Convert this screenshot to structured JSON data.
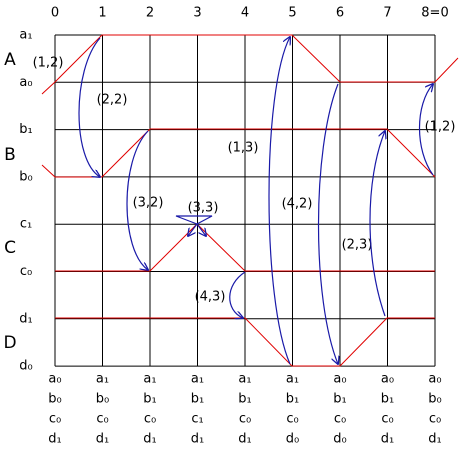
{
  "columns": [
    "0",
    "1",
    "2",
    "3",
    "4",
    "5",
    "6",
    "7",
    "8=0"
  ],
  "rows": [
    "a₁",
    "a₀",
    "b₁",
    "b₀",
    "c₁",
    "c₀",
    "d₁",
    "d₀"
  ],
  "groups": [
    "A",
    "B",
    "C",
    "D"
  ],
  "arrows": [
    {
      "label": "(1,2)"
    },
    {
      "label": "(2,2)"
    },
    {
      "label": "(3,2)"
    },
    {
      "label": "(3,3)"
    },
    {
      "label": "(4,3)"
    },
    {
      "label": "(1,3)"
    },
    {
      "label": "(4,2)"
    },
    {
      "label": "(2,3)"
    },
    {
      "label": "(1,2)"
    }
  ],
  "states": [
    [
      "a₀",
      "b₀",
      "c₀",
      "d₁"
    ],
    [
      "a₁",
      "b₀",
      "c₀",
      "d₁"
    ],
    [
      "a₁",
      "b₁",
      "c₀",
      "d₁"
    ],
    [
      "a₁",
      "b₁",
      "c₁",
      "d₁"
    ],
    [
      "a₁",
      "b₁",
      "c₀",
      "d₁"
    ],
    [
      "a₁",
      "b₁",
      "c₀",
      "d₀"
    ],
    [
      "a₀",
      "b₁",
      "c₀",
      "d₀"
    ],
    [
      "a₀",
      "b₁",
      "c₀",
      "d₁"
    ],
    [
      "a₀",
      "b₀",
      "c₀",
      "d₁"
    ]
  ]
}
